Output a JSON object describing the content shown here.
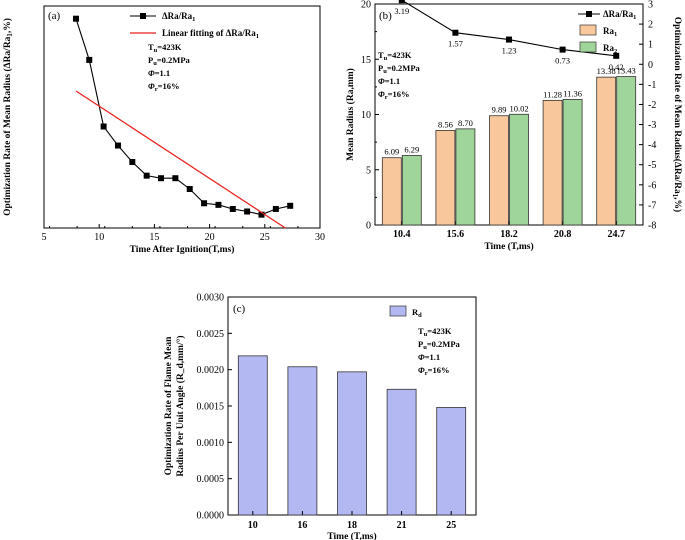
{
  "chart_data": [
    {
      "panel": "(a)",
      "type": "line",
      "xlabel": "Time After Ignition(T,ms)",
      "ylabel": "Optimization Rate of Mean Radius (ΔRa/Ra₁,%)",
      "xlim": [
        5,
        30
      ],
      "xticks": [
        5,
        10,
        15,
        20,
        25,
        30
      ],
      "ylim": [
        0,
        7
      ],
      "series": [
        {
          "name": "ΔRa/Ra₁",
          "color": "#000000",
          "marker": "square",
          "x": [
            7.9,
            9.1,
            10.4,
            11.7,
            13.0,
            14.3,
            15.6,
            16.9,
            18.2,
            19.5,
            20.8,
            22.1,
            23.4,
            24.7,
            26.0,
            27.3
          ],
          "y": [
            6.6,
            5.3,
            3.2,
            2.6,
            2.08,
            1.65,
            1.57,
            1.57,
            1.23,
            0.78,
            0.73,
            0.6,
            0.52,
            0.42,
            0.6,
            0.7
          ]
        },
        {
          "name": "Linear fitting of ΔRa/Ra₁",
          "color": "#e8231e",
          "marker": "none",
          "x": [
            7.9,
            27.3
          ],
          "y": [
            4.32,
            -0.1
          ]
        }
      ],
      "annotations": [
        "T_u=423K",
        "P_u=0.2MPa",
        "Φ=1.1",
        "Φ_r=16%"
      ]
    },
    {
      "panel": "(b)",
      "type": "bar",
      "xlabel": "Time (T,ms)",
      "ylabel": "Mean Radius (Ra,mm)",
      "ylabel_right": "Optimization Rate of Mean Radius(ΔRa/Ra₁,%)",
      "categories": [
        "10.4",
        "15.6",
        "18.2",
        "20.8",
        "24.7"
      ],
      "ylim": [
        0,
        20
      ],
      "yticks": [
        0,
        5,
        10,
        15,
        20
      ],
      "ylim_right": [
        -8,
        3
      ],
      "yticks_right": [
        -8,
        -7,
        -6,
        -5,
        -4,
        -3,
        -2,
        -1,
        0,
        1,
        2,
        3
      ],
      "series": [
        {
          "name": "Ra₁",
          "color": "#f9c79c",
          "values": [
            6.09,
            8.56,
            9.89,
            11.28,
            13.38
          ],
          "labels": [
            "6.09",
            "8.56",
            "9.89",
            "11.28",
            "13.38"
          ],
          "label_color": "#d8242a"
        },
        {
          "name": "Ra₂",
          "color": "#9fd59a",
          "values": [
            6.29,
            8.7,
            10.02,
            11.36,
            13.43
          ],
          "labels": [
            "6.29",
            "8.70",
            "10.02",
            "11.36",
            "13.43"
          ],
          "label_color": "#000000"
        }
      ],
      "line_series": {
        "name": "ΔRa/Ra₁",
        "axis": "right",
        "values": [
          3.19,
          1.57,
          1.23,
          0.73,
          0.42
        ],
        "labels": [
          "3.19",
          "1.57",
          "1.23",
          "0.73",
          "0.42"
        ]
      },
      "annotations": [
        "T_u=423K",
        "P_u=0.2MPa",
        "Φ=1.1",
        "Φ_r=16%"
      ]
    },
    {
      "panel": "(c)",
      "type": "bar",
      "xlabel": "Time (T,ms)",
      "ylabel_line1": "Optimization Rate of Flame Mean",
      "ylabel_line2": "Radius Per Unit Angle  (R_d,mm/°)",
      "categories": [
        "10",
        "16",
        "18",
        "21",
        "25"
      ],
      "ylim": [
        0,
        0.003
      ],
      "yticks": [
        "0.0000",
        "0.0005",
        "0.0010",
        "0.0015",
        "0.0020",
        "0.0025",
        "0.0030"
      ],
      "series": [
        {
          "name": "R_d",
          "color": "#b3b8f2",
          "values": [
            0.00219,
            0.00204,
            0.00197,
            0.00173,
            0.00148
          ]
        }
      ],
      "annotations": [
        "T_u=423K",
        "P_u=0.2MPa",
        "Φ=1.1",
        "Φ_r=16%"
      ]
    }
  ]
}
